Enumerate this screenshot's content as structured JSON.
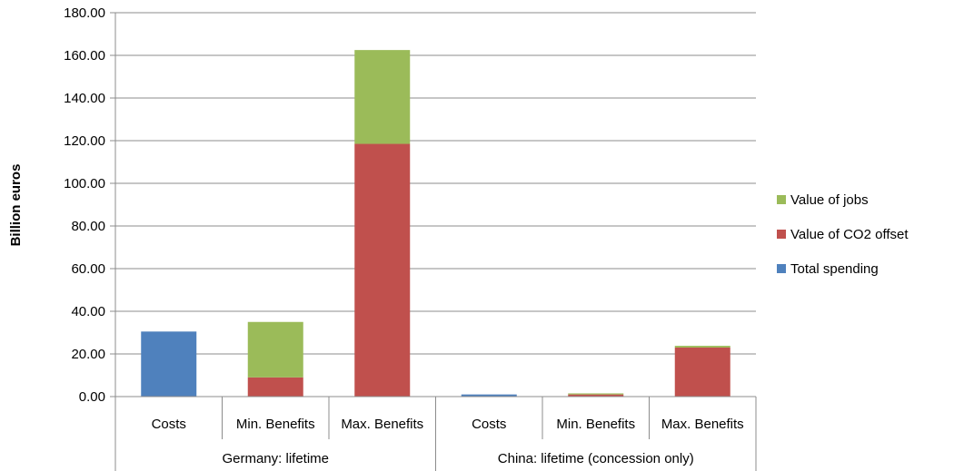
{
  "chart_data": {
    "type": "bar",
    "stacked": true,
    "ylabel": "Billion euros",
    "ylim": [
      0,
      180
    ],
    "ytick_step": 20,
    "ytick_labels": [
      "0.00",
      "20.00",
      "40.00",
      "60.00",
      "80.00",
      "100.00",
      "120.00",
      "140.00",
      "160.00",
      "180.00"
    ],
    "grid": true,
    "legend_position": "right",
    "categories": [
      "Costs",
      "Min. Benefits",
      "Max. Benefits",
      "Costs",
      "Min. Benefits",
      "Max. Benefits"
    ],
    "groups": [
      {
        "label": "Germany: lifetime",
        "span": 3
      },
      {
        "label": "China: lifetime (concession only)",
        "span": 3
      }
    ],
    "series": [
      {
        "name": "Total spending",
        "color": "#4F81BD",
        "values": [
          30.5,
          0,
          0,
          1.0,
          0,
          0
        ]
      },
      {
        "name": "Value of CO2 offset",
        "color": "#C0504D",
        "values": [
          0,
          9.0,
          118.5,
          0,
          1.0,
          23.0
        ]
      },
      {
        "name": "Value of jobs",
        "color": "#9BBB59",
        "values": [
          0,
          26.0,
          44.0,
          0,
          0.5,
          0.8
        ]
      }
    ],
    "legend_order": [
      "Value of jobs",
      "Value of CO2 offset",
      "Total spending"
    ]
  }
}
